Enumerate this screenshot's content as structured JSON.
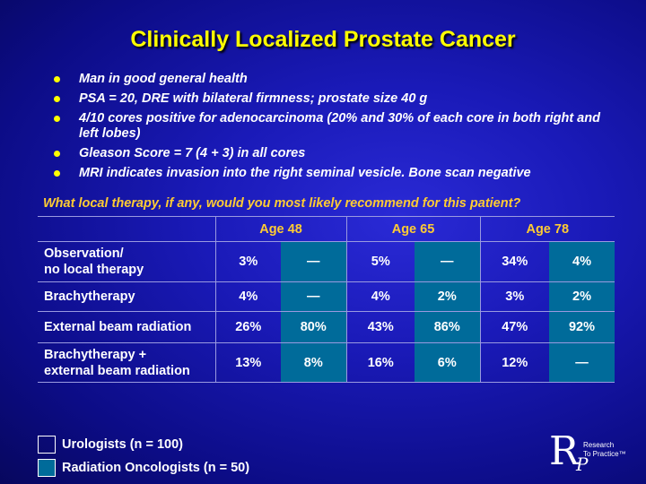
{
  "slide": {
    "title": "Clinically Localized Prostate Cancer",
    "bullets": [
      "Man in good general health",
      "PSA = 20, DRE with bilateral firmness; prostate size 40 g",
      "4/10 cores positive for adenocarcinoma (20% and 30% of each core in both right and left lobes)",
      "Gleason Score = 7 (4 + 3) in all cores",
      "MRI indicates invasion into the right seminal vesicle. Bone scan negative"
    ],
    "question": "What local therapy, if any, would you most likely recommend for this patient?"
  },
  "table": {
    "age_headers": [
      "Age 48",
      "Age 65",
      "Age 78"
    ],
    "rows": [
      {
        "label_line1": "Observation/",
        "label_line2": "no local therapy",
        "values": [
          "3%",
          "—",
          "5%",
          "—",
          "34%",
          "4%"
        ]
      },
      {
        "label_line1": "Brachytherapy",
        "label_line2": "",
        "values": [
          "4%",
          "—",
          "4%",
          "2%",
          "3%",
          "2%"
        ]
      },
      {
        "label_line1": "External beam radiation",
        "label_line2": "",
        "values": [
          "26%",
          "80%",
          "43%",
          "86%",
          "47%",
          "92%"
        ]
      },
      {
        "label_line1": "Brachytherapy +",
        "label_line2": "external beam radiation",
        "values": [
          "13%",
          "8%",
          "16%",
          "6%",
          "12%",
          "—"
        ]
      }
    ]
  },
  "legend": {
    "urologists": "Urologists  (n = 100)",
    "radiation_oncologists": "Radiation Oncologists  (n = 50)",
    "colors": {
      "urologists": "transparent",
      "radiation_oncologists": "#006b9a"
    }
  },
  "logo": {
    "letter_r": "R",
    "letter_p": "P",
    "line1": "Research",
    "line2": "To Practice™"
  }
}
